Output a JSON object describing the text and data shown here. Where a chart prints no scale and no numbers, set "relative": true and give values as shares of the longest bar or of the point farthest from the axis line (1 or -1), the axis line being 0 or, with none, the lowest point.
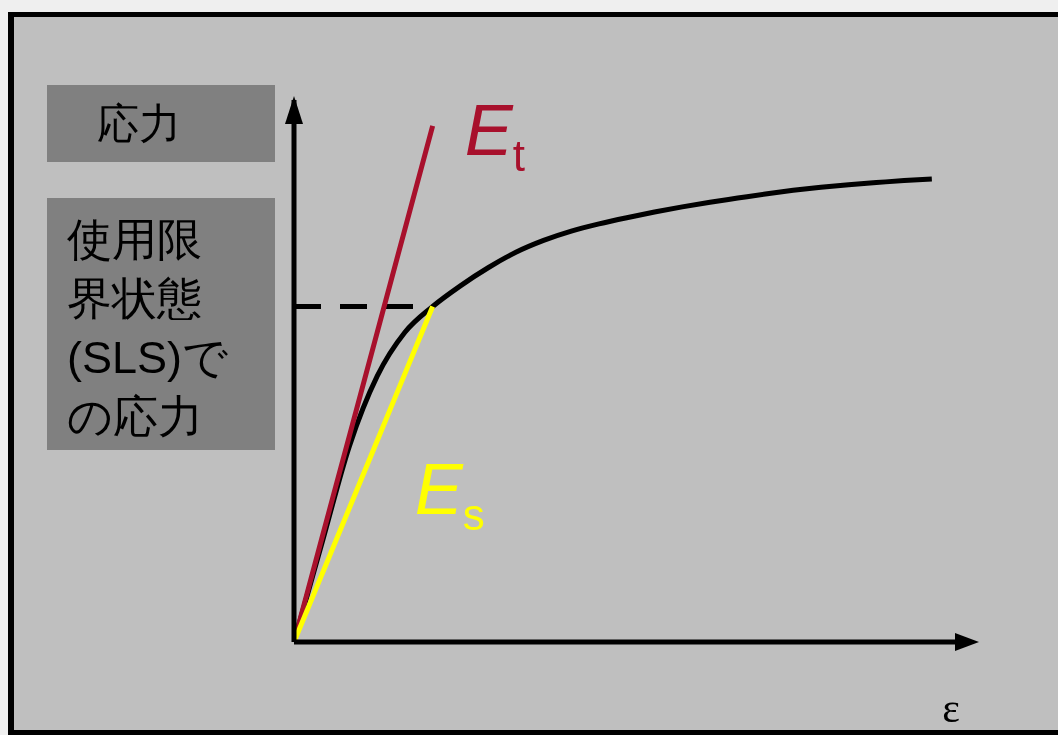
{
  "chart_data": {
    "type": "line",
    "ylabel": "応力",
    "xlabel": "ε",
    "categories": [
      null,
      null,
      null,
      null,
      null,
      null,
      null,
      null,
      null,
      null,
      null,
      null,
      null,
      null,
      null,
      null,
      null,
      null,
      null,
      null,
      null,
      null,
      null,
      null
    ],
    "relative": true,
    "series": [
      {
        "color": "#000000",
        "values": [
          0,
          0.19,
          0.38,
          0.515,
          0.6,
          0.65,
          0.69,
          0.725,
          0.755,
          0.778,
          0.796,
          0.81,
          0.822,
          0.833,
          0.843,
          0.852,
          0.86,
          0.868,
          0.875,
          0.881,
          0.886,
          0.89,
          0.894,
          0.897
        ]
      },
      {
        "color": "#000000",
        "line_style": "dashed",
        "values": [
          0.65,
          0.65,
          0.65,
          0.65,
          0.65,
          0.65,
          null,
          null,
          null,
          null,
          null,
          null,
          null,
          null,
          null,
          null,
          null,
          null,
          null,
          null,
          null,
          null,
          null,
          null
        ]
      },
      {
        "name": "E$_{t}$",
        "color": "#a8102c",
        "values": [
          0,
          0.2,
          0.4,
          0.6,
          0.8,
          1,
          null,
          null,
          null,
          null,
          null,
          null,
          null,
          null,
          null,
          null,
          null,
          null,
          null,
          null,
          null,
          null,
          null,
          null
        ]
      },
      {
        "name": "E$_{s}$",
        "color": "#ffff00",
        "values": [
          0,
          0.13,
          0.26,
          0.39,
          0.52,
          0.65,
          null,
          null,
          null,
          null,
          null,
          null,
          null,
          null,
          null,
          null,
          null,
          null,
          null,
          null,
          null,
          null,
          null,
          null
        ]
      }
    ],
    "annotations": [
      "使用限界状態(SLS)での応力"
    ],
    "legend": false,
    "grid": false,
    "marker": "none",
    "line_style": "solid"
  }
}
